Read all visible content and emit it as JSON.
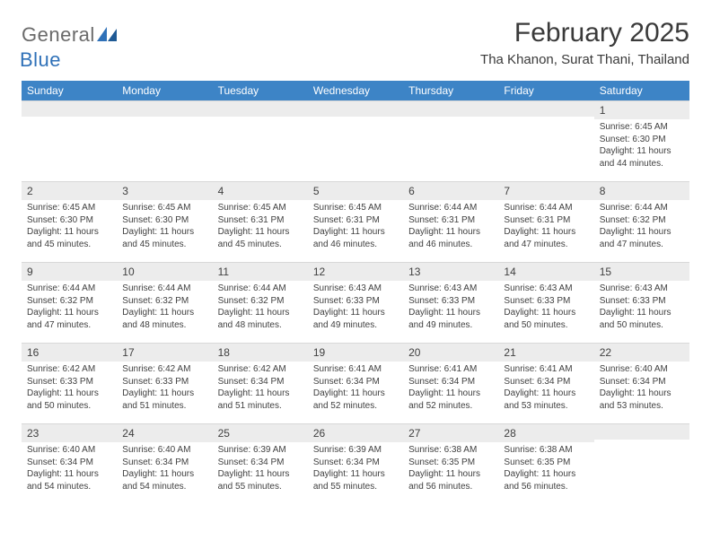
{
  "logo": {
    "general": "General",
    "blue": "Blue"
  },
  "title": "February 2025",
  "location": "Tha Khanon, Surat Thani, Thailand",
  "colors": {
    "header_bg": "#3d84c6",
    "header_text": "#ffffff",
    "daynum_bg": "#ececec",
    "border": "#d8d8d8",
    "text": "#404040",
    "logo_gray": "#6a6a6a",
    "logo_blue": "#2f71b8"
  },
  "weekdays": [
    "Sunday",
    "Monday",
    "Tuesday",
    "Wednesday",
    "Thursday",
    "Friday",
    "Saturday"
  ],
  "weeks": [
    [
      null,
      null,
      null,
      null,
      null,
      null,
      {
        "n": "1",
        "sr": "Sunrise: 6:45 AM",
        "ss": "Sunset: 6:30 PM",
        "dl": "Daylight: 11 hours and 44 minutes."
      }
    ],
    [
      {
        "n": "2",
        "sr": "Sunrise: 6:45 AM",
        "ss": "Sunset: 6:30 PM",
        "dl": "Daylight: 11 hours and 45 minutes."
      },
      {
        "n": "3",
        "sr": "Sunrise: 6:45 AM",
        "ss": "Sunset: 6:30 PM",
        "dl": "Daylight: 11 hours and 45 minutes."
      },
      {
        "n": "4",
        "sr": "Sunrise: 6:45 AM",
        "ss": "Sunset: 6:31 PM",
        "dl": "Daylight: 11 hours and 45 minutes."
      },
      {
        "n": "5",
        "sr": "Sunrise: 6:45 AM",
        "ss": "Sunset: 6:31 PM",
        "dl": "Daylight: 11 hours and 46 minutes."
      },
      {
        "n": "6",
        "sr": "Sunrise: 6:44 AM",
        "ss": "Sunset: 6:31 PM",
        "dl": "Daylight: 11 hours and 46 minutes."
      },
      {
        "n": "7",
        "sr": "Sunrise: 6:44 AM",
        "ss": "Sunset: 6:31 PM",
        "dl": "Daylight: 11 hours and 47 minutes."
      },
      {
        "n": "8",
        "sr": "Sunrise: 6:44 AM",
        "ss": "Sunset: 6:32 PM",
        "dl": "Daylight: 11 hours and 47 minutes."
      }
    ],
    [
      {
        "n": "9",
        "sr": "Sunrise: 6:44 AM",
        "ss": "Sunset: 6:32 PM",
        "dl": "Daylight: 11 hours and 47 minutes."
      },
      {
        "n": "10",
        "sr": "Sunrise: 6:44 AM",
        "ss": "Sunset: 6:32 PM",
        "dl": "Daylight: 11 hours and 48 minutes."
      },
      {
        "n": "11",
        "sr": "Sunrise: 6:44 AM",
        "ss": "Sunset: 6:32 PM",
        "dl": "Daylight: 11 hours and 48 minutes."
      },
      {
        "n": "12",
        "sr": "Sunrise: 6:43 AM",
        "ss": "Sunset: 6:33 PM",
        "dl": "Daylight: 11 hours and 49 minutes."
      },
      {
        "n": "13",
        "sr": "Sunrise: 6:43 AM",
        "ss": "Sunset: 6:33 PM",
        "dl": "Daylight: 11 hours and 49 minutes."
      },
      {
        "n": "14",
        "sr": "Sunrise: 6:43 AM",
        "ss": "Sunset: 6:33 PM",
        "dl": "Daylight: 11 hours and 50 minutes."
      },
      {
        "n": "15",
        "sr": "Sunrise: 6:43 AM",
        "ss": "Sunset: 6:33 PM",
        "dl": "Daylight: 11 hours and 50 minutes."
      }
    ],
    [
      {
        "n": "16",
        "sr": "Sunrise: 6:42 AM",
        "ss": "Sunset: 6:33 PM",
        "dl": "Daylight: 11 hours and 50 minutes."
      },
      {
        "n": "17",
        "sr": "Sunrise: 6:42 AM",
        "ss": "Sunset: 6:33 PM",
        "dl": "Daylight: 11 hours and 51 minutes."
      },
      {
        "n": "18",
        "sr": "Sunrise: 6:42 AM",
        "ss": "Sunset: 6:34 PM",
        "dl": "Daylight: 11 hours and 51 minutes."
      },
      {
        "n": "19",
        "sr": "Sunrise: 6:41 AM",
        "ss": "Sunset: 6:34 PM",
        "dl": "Daylight: 11 hours and 52 minutes."
      },
      {
        "n": "20",
        "sr": "Sunrise: 6:41 AM",
        "ss": "Sunset: 6:34 PM",
        "dl": "Daylight: 11 hours and 52 minutes."
      },
      {
        "n": "21",
        "sr": "Sunrise: 6:41 AM",
        "ss": "Sunset: 6:34 PM",
        "dl": "Daylight: 11 hours and 53 minutes."
      },
      {
        "n": "22",
        "sr": "Sunrise: 6:40 AM",
        "ss": "Sunset: 6:34 PM",
        "dl": "Daylight: 11 hours and 53 minutes."
      }
    ],
    [
      {
        "n": "23",
        "sr": "Sunrise: 6:40 AM",
        "ss": "Sunset: 6:34 PM",
        "dl": "Daylight: 11 hours and 54 minutes."
      },
      {
        "n": "24",
        "sr": "Sunrise: 6:40 AM",
        "ss": "Sunset: 6:34 PM",
        "dl": "Daylight: 11 hours and 54 minutes."
      },
      {
        "n": "25",
        "sr": "Sunrise: 6:39 AM",
        "ss": "Sunset: 6:34 PM",
        "dl": "Daylight: 11 hours and 55 minutes."
      },
      {
        "n": "26",
        "sr": "Sunrise: 6:39 AM",
        "ss": "Sunset: 6:34 PM",
        "dl": "Daylight: 11 hours and 55 minutes."
      },
      {
        "n": "27",
        "sr": "Sunrise: 6:38 AM",
        "ss": "Sunset: 6:35 PM",
        "dl": "Daylight: 11 hours and 56 minutes."
      },
      {
        "n": "28",
        "sr": "Sunrise: 6:38 AM",
        "ss": "Sunset: 6:35 PM",
        "dl": "Daylight: 11 hours and 56 minutes."
      },
      null
    ]
  ]
}
